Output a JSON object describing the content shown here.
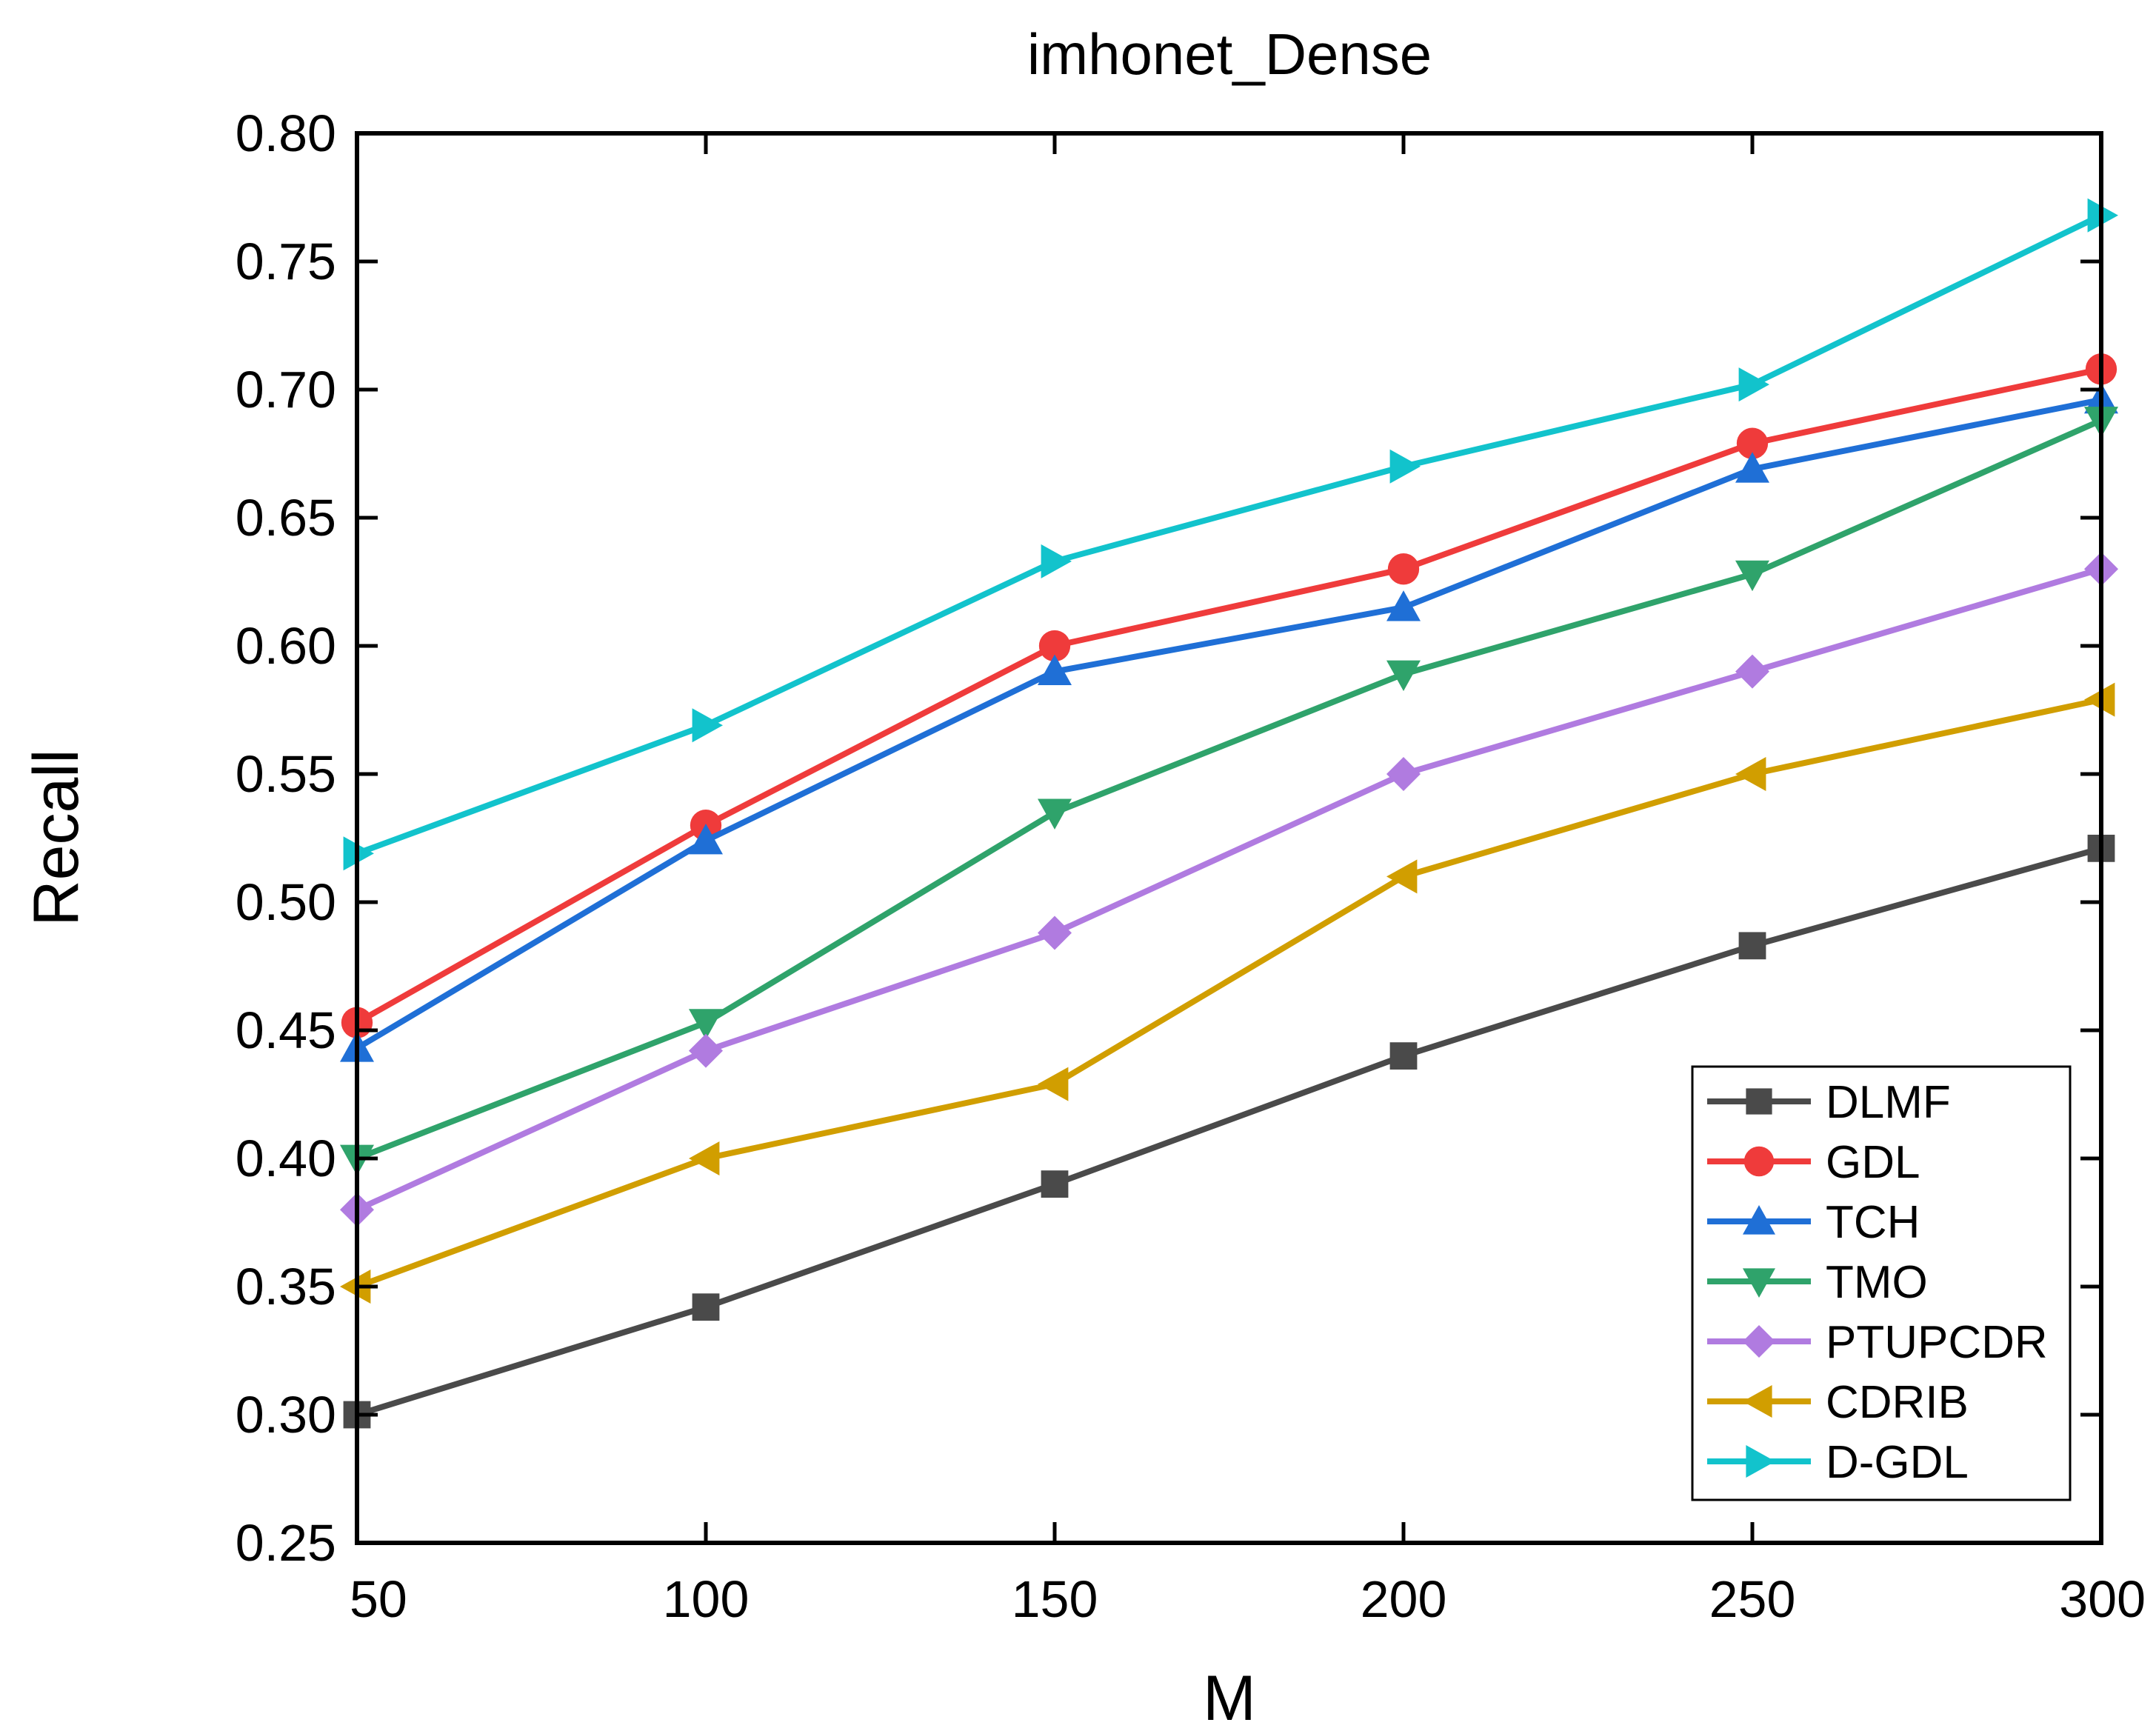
{
  "chart_data": {
    "type": "line",
    "title": "imhonet_Dense",
    "xlabel": "M",
    "ylabel": "Recall",
    "x": [
      50,
      100,
      150,
      200,
      250,
      300
    ],
    "xlim": [
      50,
      300
    ],
    "ylim": [
      0.25,
      0.8
    ],
    "xticks": [
      50,
      100,
      150,
      200,
      250,
      300
    ],
    "xtick_labels": [
      "50",
      "100",
      "150",
      "200",
      "250",
      "300"
    ],
    "yticks": [
      0.25,
      0.3,
      0.35,
      0.4,
      0.45,
      0.5,
      0.55,
      0.6,
      0.65,
      0.7,
      0.75,
      0.8
    ],
    "ytick_labels": [
      "0.25",
      "0.30",
      "0.35",
      "0.40",
      "0.45",
      "0.50",
      "0.55",
      "0.60",
      "0.65",
      "0.70",
      "0.75",
      "0.80"
    ],
    "grid": false,
    "legend_position": "bottom-right",
    "series": [
      {
        "name": "DLMF",
        "marker": "square",
        "color": "#4a4a4a",
        "values": [
          0.3,
          0.342,
          0.39,
          0.44,
          0.483,
          0.521
        ]
      },
      {
        "name": "GDL",
        "marker": "circle",
        "color": "#ef3b3b",
        "values": [
          0.453,
          0.53,
          0.6,
          0.63,
          0.679,
          0.708
        ]
      },
      {
        "name": "TCH",
        "marker": "triangle-up",
        "color": "#1f6fd6",
        "values": [
          0.443,
          0.524,
          0.59,
          0.615,
          0.669,
          0.696
        ]
      },
      {
        "name": "TMO",
        "marker": "triangle-down",
        "color": "#2fa36b",
        "values": [
          0.4,
          0.453,
          0.535,
          0.589,
          0.628,
          0.688
        ]
      },
      {
        "name": "PTUPCDR",
        "marker": "diamond",
        "color": "#b07be0",
        "values": [
          0.38,
          0.442,
          0.488,
          0.55,
          0.59,
          0.63
        ]
      },
      {
        "name": "CDRIB",
        "marker": "triangle-left",
        "color": "#d19e00",
        "values": [
          0.35,
          0.4,
          0.429,
          0.51,
          0.55,
          0.579
        ]
      },
      {
        "name": "D-GDL",
        "marker": "triangle-right",
        "color": "#12c3cc",
        "values": [
          0.519,
          0.569,
          0.633,
          0.67,
          0.702,
          0.768
        ]
      }
    ]
  }
}
